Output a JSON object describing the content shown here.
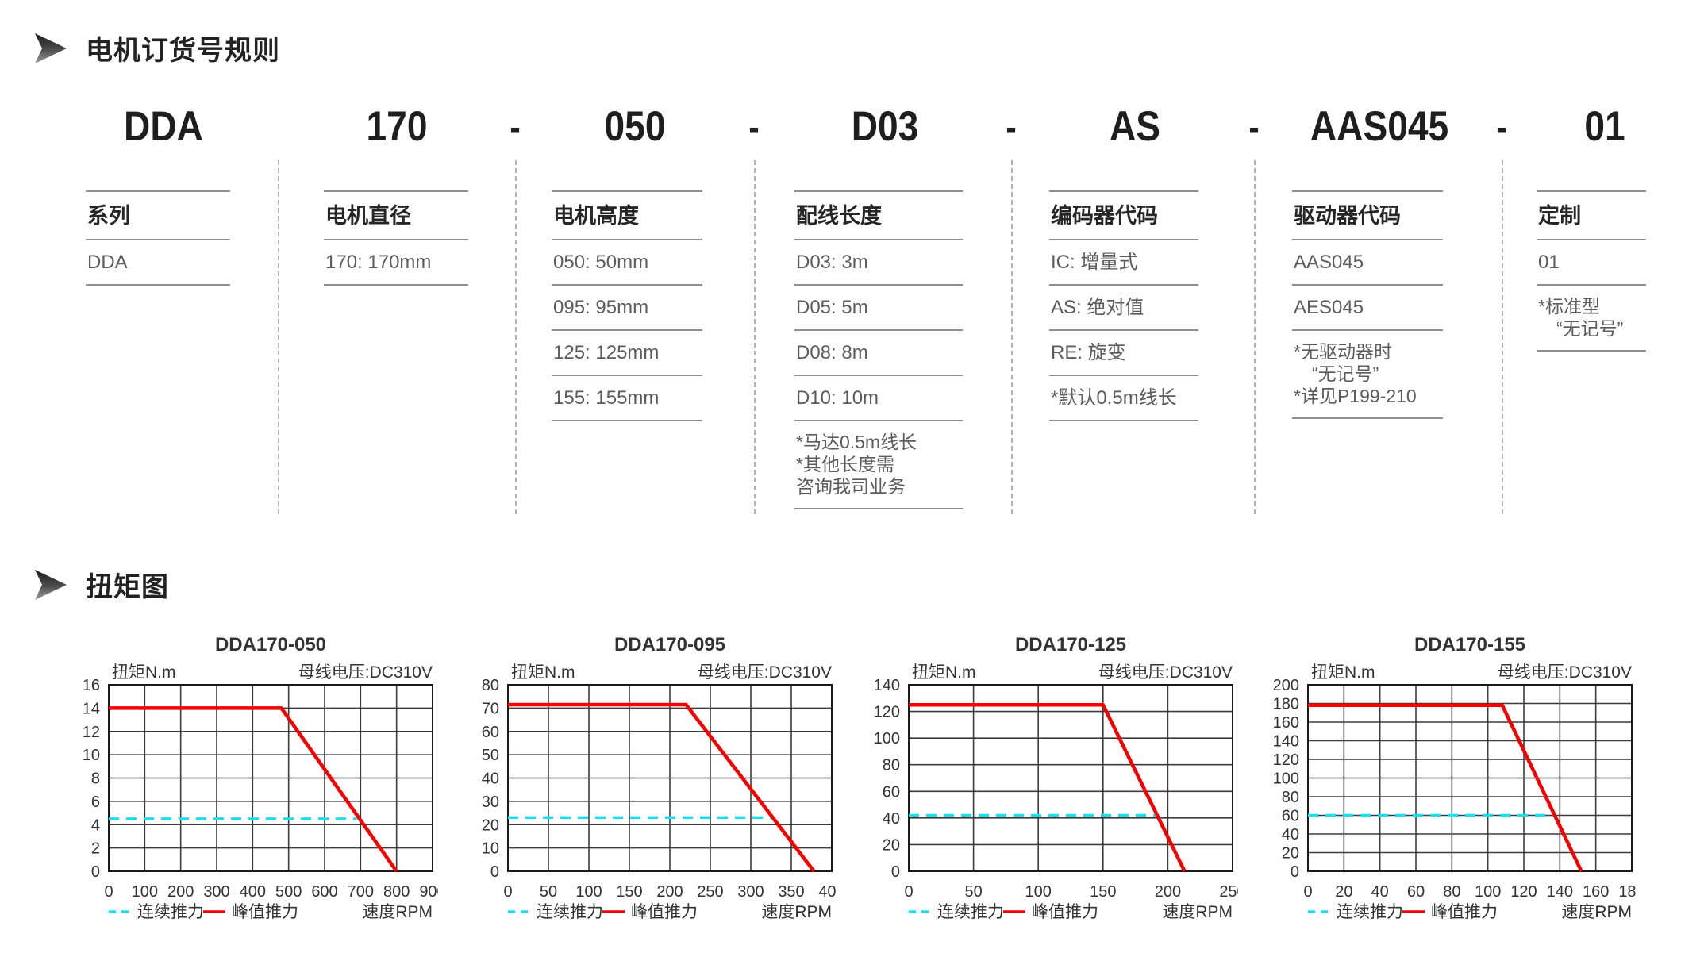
{
  "order_code": {
    "header": "电机订货号规则",
    "hyphen": "-",
    "codes": [
      "DDA",
      "170",
      "050",
      "D03",
      "AS",
      "AAS045",
      "01"
    ],
    "columns": [
      {
        "label": "系列",
        "items": [
          "DDA"
        ]
      },
      {
        "label": "电机直径",
        "items": [
          "170: 170mm"
        ]
      },
      {
        "label": "电机高度",
        "items": [
          "050: 50mm",
          "095: 95mm",
          "125: 125mm",
          "155: 155mm"
        ]
      },
      {
        "label": "配线长度",
        "items": [
          "D03: 3m",
          "D05: 5m",
          "D08: 8m",
          "D10: 10m"
        ],
        "note_lines": [
          "*马达0.5m线长",
          "*其他长度需",
          "咨询我司业务"
        ]
      },
      {
        "label": "编码器代码",
        "items": [
          "IC: 增量式",
          "AS: 绝对值",
          "RE: 旋变",
          "*默认0.5m线长"
        ]
      },
      {
        "label": "驱动器代码",
        "items": [
          "AAS045",
          "AES045"
        ],
        "note_lines": [
          "*无驱动器时",
          "　“无记号”",
          "*详见P199-210"
        ]
      },
      {
        "label": "定制",
        "items": [
          "01"
        ],
        "note_lines": [
          "*标准型",
          "　“无记号”"
        ]
      }
    ]
  },
  "torque": {
    "header": "扭矩图"
  },
  "chart_style": {
    "peak_color": "#f60000",
    "continuous_color": "#1bdef0",
    "grid_color": "#3c3c3c",
    "border_color": "#1a1a1a",
    "text_color": "#333333"
  },
  "chart_data": [
    {
      "type": "line",
      "title": "DDA170-050",
      "ylabel": "扭矩N.m",
      "annotation": "母线电压:DC310V",
      "xlabel": "速度RPM",
      "xlim": [
        0,
        900
      ],
      "xstep": 100,
      "ylim": [
        0,
        16
      ],
      "ystep": 2,
      "grid": true,
      "legend_position": "bottom",
      "series": [
        {
          "name": "连续推力",
          "style": "dashed",
          "points": [
            [
              0,
              4.5
            ],
            [
              690,
              4.5
            ]
          ]
        },
        {
          "name": "峰值推力",
          "style": "solid",
          "points": [
            [
              0,
              14
            ],
            [
              480,
              14
            ],
            [
              800,
              0
            ]
          ]
        }
      ]
    },
    {
      "type": "line",
      "title": "DDA170-095",
      "ylabel": "扭矩N.m",
      "annotation": "母线电压:DC310V",
      "xlabel": "速度RPM",
      "xlim": [
        0,
        400
      ],
      "xstep": 50,
      "ylim": [
        0,
        80
      ],
      "ystep": 10,
      "grid": true,
      "legend_position": "bottom",
      "series": [
        {
          "name": "连续推力",
          "style": "dashed",
          "points": [
            [
              0,
              23
            ],
            [
              326,
              23
            ]
          ]
        },
        {
          "name": "峰值推力",
          "style": "solid",
          "points": [
            [
              0,
              71.5
            ],
            [
              220,
              71.5
            ],
            [
              378,
              0
            ]
          ]
        }
      ]
    },
    {
      "type": "line",
      "title": "DDA170-125",
      "ylabel": "扭矩N.m",
      "annotation": "母线电压:DC310V",
      "xlabel": "速度RPM",
      "xlim": [
        0,
        250
      ],
      "xstep": 50,
      "ylim": [
        0,
        140
      ],
      "ystep": 20,
      "grid": true,
      "legend_position": "bottom",
      "series": [
        {
          "name": "连续推力",
          "style": "dashed",
          "points": [
            [
              0,
              42
            ],
            [
              192,
              42
            ]
          ]
        },
        {
          "name": "峰值推力",
          "style": "solid",
          "points": [
            [
              0,
              125
            ],
            [
              150,
              125
            ],
            [
              213,
              0
            ]
          ]
        }
      ]
    },
    {
      "type": "line",
      "title": "DDA170-155",
      "ylabel": "扭矩N.m",
      "annotation": "母线电压:DC310V",
      "xlabel": "速度RPM",
      "xlim": [
        0,
        180
      ],
      "xstep": 20,
      "ylim": [
        0,
        200
      ],
      "ystep": 20,
      "grid": true,
      "legend_position": "bottom",
      "series": [
        {
          "name": "连续推力",
          "style": "dashed",
          "points": [
            [
              0,
              60
            ],
            [
              138,
              60
            ]
          ]
        },
        {
          "name": "峰值推力",
          "style": "solid",
          "points": [
            [
              0,
              178
            ],
            [
              108,
              178
            ],
            [
              152,
              0
            ]
          ]
        }
      ]
    }
  ]
}
